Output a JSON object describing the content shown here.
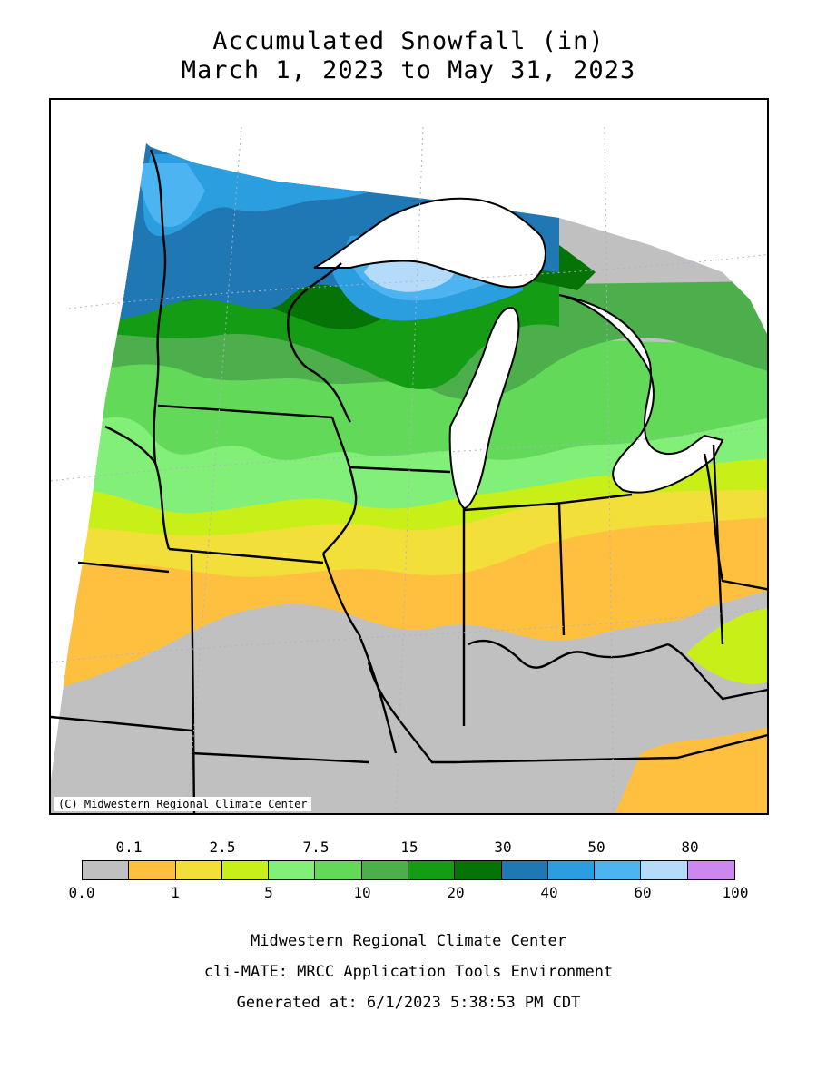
{
  "title": {
    "line1": "Accumulated Snowfall (in)",
    "line2": "March 1, 2023 to May 31, 2023"
  },
  "map": {
    "copyright": "(C) Midwestern Regional Climate Center",
    "colors": {
      "none": "#c0c0c0",
      "orange": "#ffc040",
      "yellow": "#f2df3a",
      "yellowgreen": "#c8ef18",
      "lightgreen": "#82ef78",
      "green2": "#63d95a",
      "green3": "#4caf4c",
      "green4": "#149c14",
      "darkgreen": "#057305",
      "darkblue": "#1f78b4",
      "blue": "#2b9ee0",
      "lightblue": "#4cb4f0",
      "paleblue": "#b4dcfa",
      "lake": "#ffffff"
    }
  },
  "legend": {
    "top_labels": [
      "0.1",
      "2.5",
      "7.5",
      "15",
      "30",
      "50",
      "80"
    ],
    "bottom_labels": [
      "0.0",
      "1",
      "5",
      "10",
      "20",
      "40",
      "60",
      "100"
    ],
    "swatches": [
      "#c0c0c0",
      "#ffc040",
      "#f2df3a",
      "#c8ef18",
      "#82ef78",
      "#63d95a",
      "#4caf4c",
      "#149c14",
      "#057305",
      "#1f78b4",
      "#2b9ee0",
      "#4cb4f0",
      "#b4dcfa",
      "#cc88ee"
    ]
  },
  "footer": {
    "line1": "Midwestern Regional Climate Center",
    "line2": "cli-MATE: MRCC Application Tools Environment",
    "line3": "Generated at: 6/1/2023 5:38:53 PM CDT"
  }
}
